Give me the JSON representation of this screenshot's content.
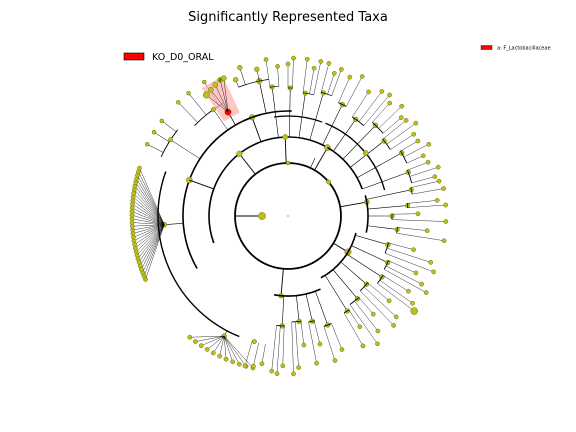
{
  "figure": {
    "title": "Significantly Represented Taxa"
  },
  "legend_main": {
    "label": "KO_D0_ORAL",
    "color": "#ff0000"
  },
  "legend_clade": {
    "label": "a: F_Lactobacillaceae",
    "color": "#ff0000"
  },
  "highlighted_clade": {
    "letter": "a",
    "shade_color": "#ffb3b3",
    "node_color": "#ff0000"
  },
  "colors": {
    "node_default": "#bfbf1f",
    "node_stroke": "#6b6b00",
    "branch": "#000000"
  }
}
